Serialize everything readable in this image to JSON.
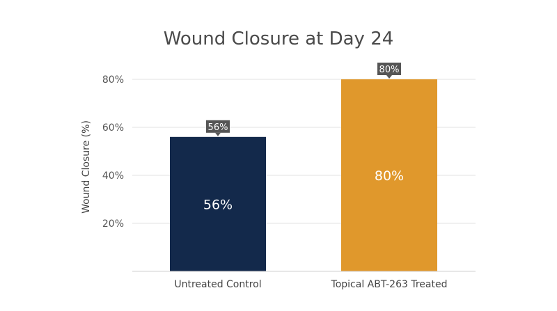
{
  "chart_data": {
    "type": "bar",
    "title": "Wound Closure at Day 24",
    "xlabel": "",
    "ylabel": "Wound Closure (%)",
    "ylim": [
      0,
      80
    ],
    "yticks": [
      20,
      40,
      60,
      80
    ],
    "ytick_labels": [
      "20%",
      "40%",
      "60%",
      "80%"
    ],
    "categories": [
      "Untreated Control",
      "Topical ABT-263 Treated"
    ],
    "values": [
      56,
      80
    ],
    "data_labels": [
      "56%",
      "80%"
    ],
    "colors": [
      "#13294b",
      "#e0982c"
    ],
    "callout_color": "#555555",
    "grid": true,
    "legend": "none"
  }
}
